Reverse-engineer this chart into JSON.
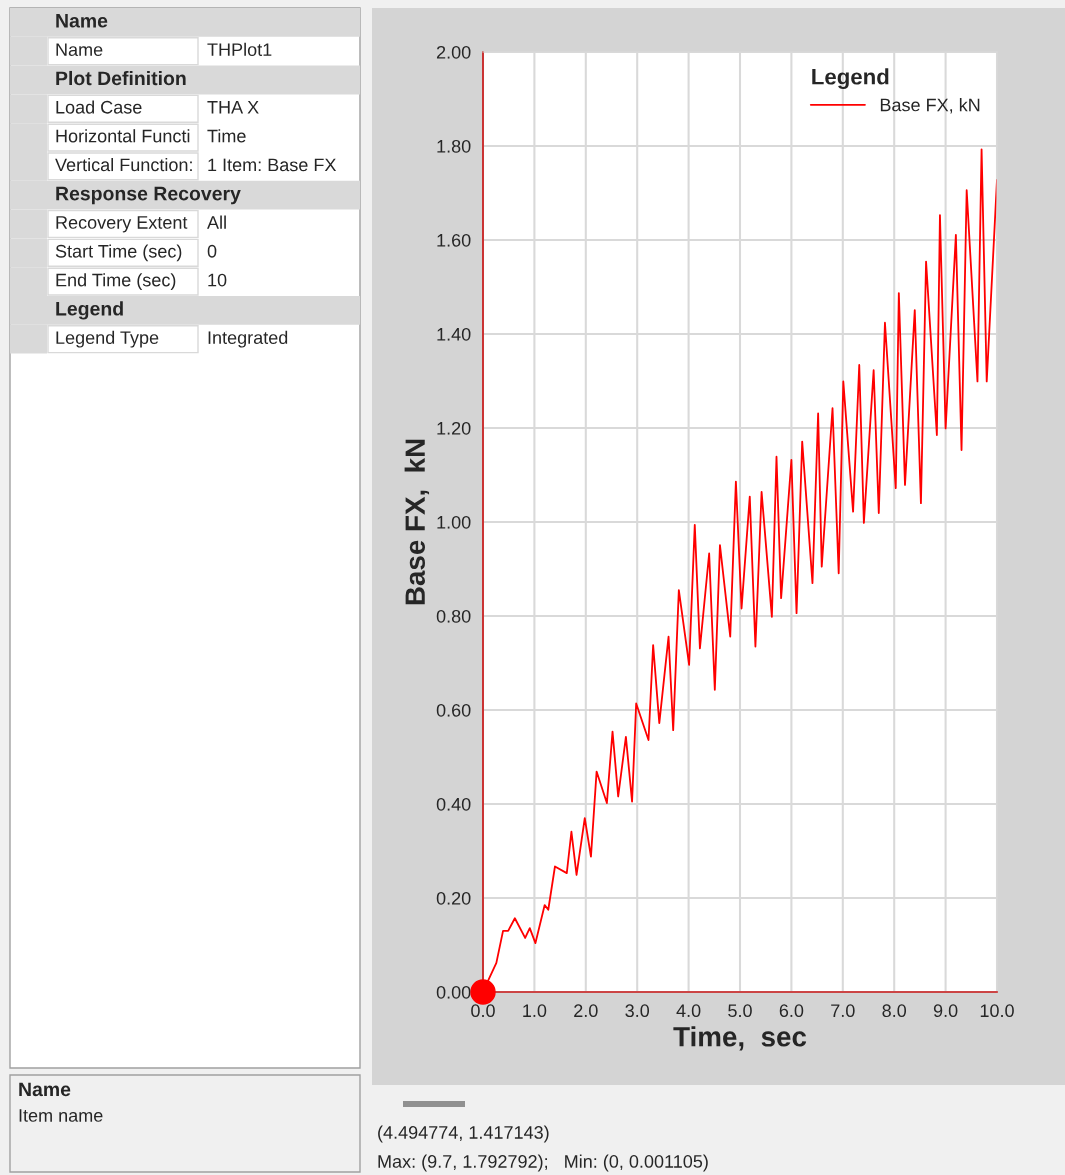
{
  "chart_data": [
    {
      "type": "other",
      "annotations": [
        "Name",
        "Name",
        "THPlot1",
        "Plot Definition",
        "Load Case",
        "THA X",
        "Horizontal Functi",
        "Time",
        "Vertical Function:",
        "1 Item: Base FX",
        "Response Recovery",
        "Recovery Extent",
        "All",
        "Start Time (sec)",
        "0",
        "End Time (sec)",
        "10",
        "Legend",
        "Legend Type",
        "Integrated",
        "Name",
        "Item name"
      ]
    },
    {
      "type": "line",
      "xlabel": "Time,  sec",
      "ylabel": "Base FX,  kN",
      "legend_title": "Legend",
      "legend": "top right",
      "grid": true,
      "xlim": [
        0,
        10
      ],
      "ylim": [
        0,
        2
      ],
      "xticks": [
        {
          "value": 0,
          "label": "0.0"
        },
        {
          "value": 1,
          "label": "1.0"
        },
        {
          "value": 2,
          "label": "2.0"
        },
        {
          "value": 3,
          "label": "3.0"
        },
        {
          "value": 4,
          "label": "4.0"
        },
        {
          "value": 5,
          "label": "5.0"
        },
        {
          "value": 6,
          "label": "6.0"
        },
        {
          "value": 7,
          "label": "7.0"
        },
        {
          "value": 8,
          "label": "8.0"
        },
        {
          "value": 9,
          "label": "9.0"
        },
        {
          "value": 10,
          "label": "10.0"
        }
      ],
      "yticks": [
        {
          "value": 0,
          "label": "0.00"
        },
        {
          "value": 0.2,
          "label": "0.20"
        },
        {
          "value": 0.4,
          "label": "0.40"
        },
        {
          "value": 0.6,
          "label": "0.60"
        },
        {
          "value": 0.8,
          "label": "0.80"
        },
        {
          "value": 1.0,
          "label": "1.00"
        },
        {
          "value": 1.2,
          "label": "1.20"
        },
        {
          "value": 1.4,
          "label": "1.40"
        },
        {
          "value": 1.6,
          "label": "1.60"
        },
        {
          "value": 1.8,
          "label": "1.80"
        },
        {
          "value": 2.0,
          "label": "2.00"
        }
      ],
      "annotations": [
        "(4.494774, 1.417143)",
        "Max: (9.7, 1.792792);   Min: (0, 0.001105)"
      ],
      "series": [
        {
          "name": "Base FX, kN",
          "color": "#ff0000",
          "type": "line",
          "marker": "none",
          "line_style": "solid",
          "x": [
            0,
            0.26,
            0.39,
            0.49,
            0.62,
            0.82,
            0.91,
            1.02,
            1.2,
            1.27,
            1.4,
            1.63,
            1.72,
            1.82,
            1.98,
            2.1,
            2.21,
            2.41,
            2.52,
            2.63,
            2.78,
            2.9,
            2.98,
            3.22,
            3.31,
            3.43,
            3.61,
            3.7,
            3.81,
            4.01,
            4.12,
            4.22,
            4.4,
            4.51,
            4.61,
            4.81,
            4.92,
            5.03,
            5.19,
            5.3,
            5.42,
            5.62,
            5.71,
            5.8,
            6.0,
            6.1,
            6.21,
            6.41,
            6.52,
            6.59,
            6.8,
            6.92,
            7.01,
            7.2,
            7.32,
            7.41,
            7.6,
            7.7,
            7.82,
            8.03,
            8.09,
            8.21,
            8.4,
            8.52,
            8.62,
            8.83,
            8.89,
            9.0,
            9.2,
            9.31,
            9.41,
            9.62,
            9.7,
            9.8,
            10.0
          ],
          "values": [
            0.001,
            0.062,
            0.13,
            0.13,
            0.157,
            0.115,
            0.136,
            0.104,
            0.185,
            0.175,
            0.267,
            0.253,
            0.341,
            0.249,
            0.37,
            0.288,
            0.469,
            0.402,
            0.554,
            0.416,
            0.543,
            0.405,
            0.614,
            0.536,
            0.738,
            0.572,
            0.756,
            0.557,
            0.855,
            0.696,
            0.994,
            0.731,
            0.933,
            0.643,
            0.951,
            0.756,
            1.086,
            0.816,
            1.054,
            0.735,
            1.064,
            0.798,
            1.139,
            0.838,
            1.132,
            0.806,
            1.171,
            0.87,
            1.231,
            0.905,
            1.242,
            0.891,
            1.299,
            1.022,
            1.334,
            0.998,
            1.323,
            1.019,
            1.424,
            1.072,
            1.487,
            1.079,
            1.451,
            1.04,
            1.554,
            1.185,
            1.653,
            1.199,
            1.611,
            1.153,
            1.706,
            1.299,
            1.793,
            1.299,
            1.728
          ]
        },
        {
          "color": "#ff0000",
          "type": "scatter",
          "marker": "circle",
          "x": [
            0
          ],
          "values": [
            0
          ]
        }
      ]
    }
  ]
}
